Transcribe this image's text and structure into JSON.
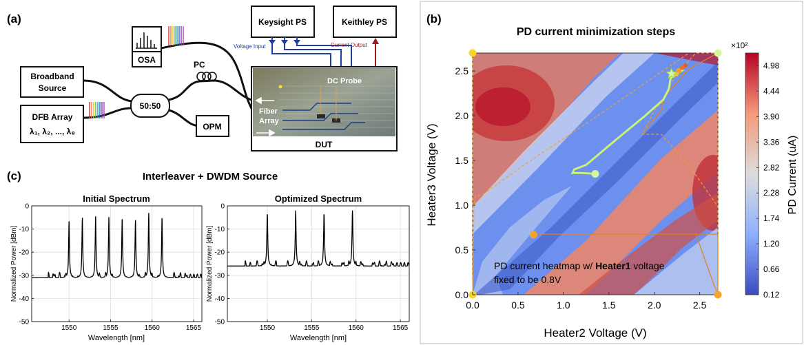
{
  "labels": {
    "panel_a": "(a)",
    "panel_b": "(b)",
    "panel_c": "(c)"
  },
  "setup": {
    "osa": "OSA",
    "broadband_line1": "Broadband",
    "broadband_line2": "Source",
    "dfb_line1": "DFB Array",
    "dfb_line2": "λ₁, λ₂, ..., λ₈",
    "splitter": "50:50",
    "pc": "PC",
    "opm": "OPM",
    "keysight": "Keysight PS",
    "keithley": "Keithley PS",
    "voltage_input": "Voltage Input",
    "current_output": "Current Output",
    "dc_probe": "DC Probe",
    "fiber_array_line1": "Fiber",
    "fiber_array_line2": "Array",
    "dut": "DUT"
  },
  "colors": {
    "voltage_wire": "#1f3f9f",
    "current_wire": "#9b1c1c",
    "trajectory": "#c8f27a",
    "gradient_path": "#f0a030",
    "corner_marker": "#f7b52a",
    "heatmap_low": "#3a4cc0",
    "heatmap_high": "#b40426"
  },
  "heatmap": {
    "title": "PD current minimization steps",
    "xlabel": "Heater2 Voltage (V)",
    "ylabel": "Heater3 Voltage (V)",
    "colorbar_label": "PD Current (uA)",
    "colorbar_exponent": "×10²",
    "annotation_line1_pre": "PD current heatmap w/ ",
    "annotation_bold": "Heater1",
    "annotation_line1_post": " voltage",
    "annotation_line2": "fixed to be 0.8V"
  },
  "chart_data": [
    {
      "type": "heatmap",
      "title": "PD current minimization steps",
      "xlabel": "Heater2 Voltage (V)",
      "ylabel": "Heater3 Voltage (V)",
      "xlim": [
        0,
        2.7
      ],
      "ylim": [
        0,
        2.7
      ],
      "xticks": [
        "0.0",
        "0.5",
        "1.0",
        "1.5",
        "2.0",
        "2.5"
      ],
      "yticks": [
        "0.0",
        "0.5",
        "1.0",
        "1.5",
        "2.0",
        "2.5"
      ],
      "colorbar_ticks": [
        "4.98",
        "4.44",
        "3.90",
        "3.36",
        "2.82",
        "2.28",
        "1.74",
        "1.20",
        "0.66",
        "0.12"
      ],
      "colorbar_range": [
        0.12,
        5.25
      ],
      "start_points": [
        {
          "x": 0,
          "y": 0
        },
        {
          "x": 0,
          "y": 2.7
        },
        {
          "x": 2.7,
          "y": 0
        },
        {
          "x": 2.7,
          "y": 2.7
        },
        {
          "x": 0.67,
          "y": 0.67
        },
        {
          "x": 1.35,
          "y": 1.35
        }
      ],
      "trajectory": [
        {
          "x": 1.35,
          "y": 1.35
        },
        {
          "x": 1.2,
          "y": 1.36
        },
        {
          "x": 1.1,
          "y": 1.36
        },
        {
          "x": 1.12,
          "y": 1.4
        },
        {
          "x": 1.25,
          "y": 1.45
        },
        {
          "x": 1.6,
          "y": 1.75
        },
        {
          "x": 1.9,
          "y": 2.0
        },
        {
          "x": 2.1,
          "y": 2.18
        },
        {
          "x": 2.16,
          "y": 2.3
        },
        {
          "x": 2.18,
          "y": 2.42
        },
        {
          "x": 2.22,
          "y": 2.45
        },
        {
          "x": 2.3,
          "y": 2.5
        },
        {
          "x": 2.25,
          "y": 2.5
        }
      ],
      "optimum": {
        "x": 2.25,
        "y": 2.5
      }
    },
    {
      "type": "line",
      "title": "Initial Spectrum",
      "xlabel": "Wavelength [nm]",
      "ylabel": "Normalized Power [dBm]",
      "xlim": [
        1545.5,
        1566
      ],
      "ylim": [
        -50,
        0
      ],
      "xticks": [
        "1550",
        "1555",
        "1560",
        "1565"
      ],
      "yticks": [
        "0",
        "-10",
        "-20",
        "-30",
        "-40",
        "-50"
      ],
      "peaks_nm": [
        1550.0,
        1551.6,
        1553.2,
        1554.8,
        1556.4,
        1558.0,
        1559.6,
        1561.2
      ],
      "peaks_dbm": [
        -6,
        -5,
        -4.5,
        -4.5,
        -5,
        -6,
        -3,
        -5
      ],
      "floor_dbm": -31,
      "notch_dbm": -45
    },
    {
      "type": "line",
      "title": "Optimized Spectrum",
      "xlabel": "Wavelength [nm]",
      "ylabel": "Normalized Power [dBm]",
      "xlim": [
        1545.5,
        1566
      ],
      "ylim": [
        -50,
        0
      ],
      "xticks": [
        "1550",
        "1555",
        "1560",
        "1565"
      ],
      "yticks": [
        "0",
        "-10",
        "-20",
        "-30",
        "-40",
        "-50"
      ],
      "peaks_nm": [
        1550.0,
        1553.2,
        1556.4,
        1559.6
      ],
      "peaks_dbm": [
        -3,
        -2,
        -3,
        -2
      ],
      "floor_dbm": -26,
      "notch_dbm": -48
    }
  ],
  "spectra": {
    "section_title": "Interleaver + DWDM Source"
  }
}
